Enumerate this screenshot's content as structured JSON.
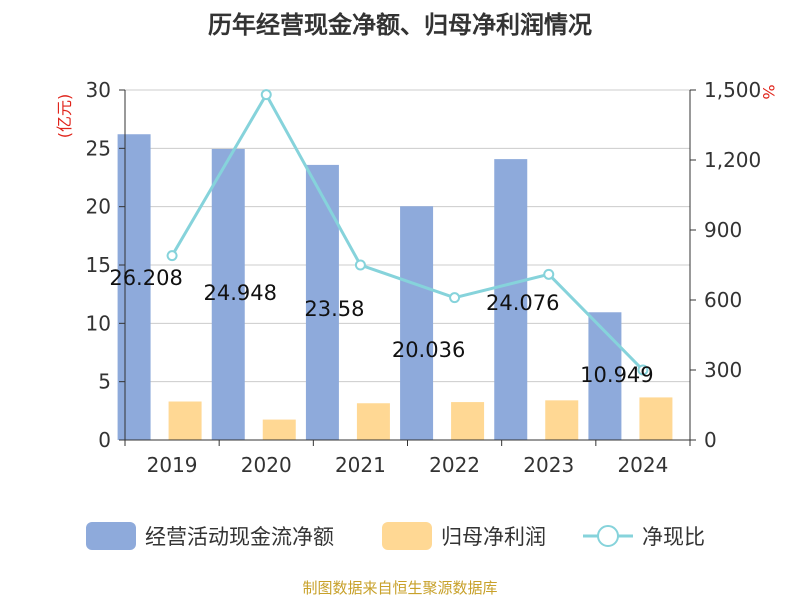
{
  "chart_data": {
    "type": "bar",
    "title": "历年经营现金净额、归母净利润情况",
    "categories": [
      "2019",
      "2020",
      "2021",
      "2022",
      "2023",
      "2024"
    ],
    "series": [
      {
        "name": "经营活动现金流净额",
        "kind": "bar",
        "axis": "left",
        "values": [
          26.208,
          24.948,
          23.58,
          20.036,
          24.076,
          10.949
        ]
      },
      {
        "name": "归母净利润",
        "kind": "bar",
        "axis": "left",
        "values": [
          3.3,
          1.75,
          3.15,
          3.25,
          3.4,
          3.65
        ]
      },
      {
        "name": "净现比",
        "kind": "line",
        "axis": "right",
        "values": [
          790,
          1480,
          750,
          610,
          710,
          300
        ]
      }
    ],
    "data_labels": [
      "26.208",
      "24.948",
      "23.58",
      "20.036",
      "24.076",
      "10.949"
    ],
    "left_axis": {
      "unit": "(亿元)",
      "ylim": [
        0,
        30
      ],
      "ticks": [
        0,
        5,
        10,
        15,
        20,
        25,
        30
      ],
      "tick_labels": [
        "0",
        "5",
        "10",
        "15",
        "20",
        "25",
        "30"
      ]
    },
    "right_axis": {
      "unit": "%",
      "ylim": [
        0,
        1500
      ],
      "ticks": [
        0,
        300,
        600,
        900,
        1200,
        1500
      ],
      "tick_labels": [
        "0",
        "300",
        "600",
        "900",
        "1,200",
        "1,500"
      ]
    },
    "legend": [
      "经营活动现金流净额",
      "归母净利润",
      "净现比"
    ],
    "grid": true,
    "colors": {
      "bar1": "#8eaadb",
      "bar2": "#ffd894",
      "line": "#86d3db",
      "grid": "#cccccc",
      "axis": "#333333",
      "unit": "#e0241b"
    }
  },
  "source": "制图数据来自恒生聚源数据库"
}
